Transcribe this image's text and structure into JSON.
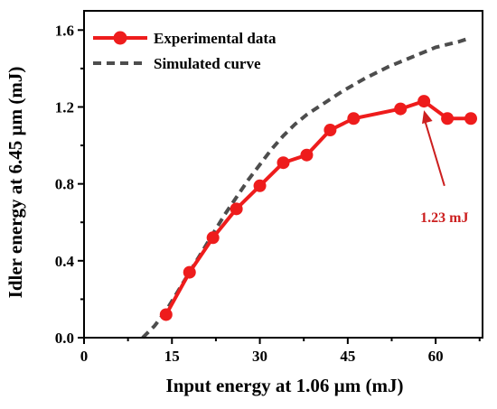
{
  "chart_data": {
    "type": "line",
    "title": "",
    "xlabel": "Input energy at 1.06 µm (mJ)",
    "ylabel": "Idler energy at 6.45 µm (mJ)",
    "xlim": [
      0,
      68
    ],
    "ylim": [
      0,
      1.7
    ],
    "x_ticks": [
      0,
      15,
      30,
      45,
      60
    ],
    "y_ticks": [
      0.0,
      0.4,
      0.8,
      1.2,
      1.6
    ],
    "x_tick_labels": [
      "0",
      "15",
      "30",
      "45",
      "60"
    ],
    "y_tick_labels": [
      "0.0",
      "0.4",
      "0.8",
      "1.2",
      "1.6"
    ],
    "grid": false,
    "legend_position": "top-left",
    "series": [
      {
        "name": "Experimental data",
        "style": "line-with-circle-markers",
        "color": "#ee1c1c",
        "x": [
          14,
          18,
          22,
          26,
          30,
          34,
          38,
          42,
          46,
          54,
          58,
          62,
          66
        ],
        "y": [
          0.12,
          0.34,
          0.52,
          0.67,
          0.79,
          0.91,
          0.95,
          1.08,
          1.14,
          1.19,
          1.23,
          1.14,
          1.14
        ]
      },
      {
        "name": "Simulated curve",
        "style": "dashed-line",
        "color": "#4d4d4d",
        "x": [
          10,
          12,
          14,
          16,
          18,
          20,
          22,
          24,
          26,
          28,
          30,
          32,
          34,
          36,
          38,
          40,
          44,
          48,
          52,
          56,
          60,
          64,
          66
        ],
        "y": [
          0.0,
          0.06,
          0.14,
          0.24,
          0.34,
          0.44,
          0.54,
          0.64,
          0.73,
          0.82,
          0.9,
          0.98,
          1.05,
          1.11,
          1.16,
          1.2,
          1.28,
          1.35,
          1.41,
          1.46,
          1.51,
          1.54,
          1.56
        ]
      }
    ],
    "annotations": [
      {
        "text": "1.23 mJ",
        "color": "#cc1f1f",
        "arrow_to": {
          "x": 58,
          "y": 1.23
        },
        "arrow_from": {
          "x": 61.5,
          "y": 0.79
        },
        "text_at": {
          "x": 61.5,
          "y": 0.63
        }
      }
    ]
  }
}
